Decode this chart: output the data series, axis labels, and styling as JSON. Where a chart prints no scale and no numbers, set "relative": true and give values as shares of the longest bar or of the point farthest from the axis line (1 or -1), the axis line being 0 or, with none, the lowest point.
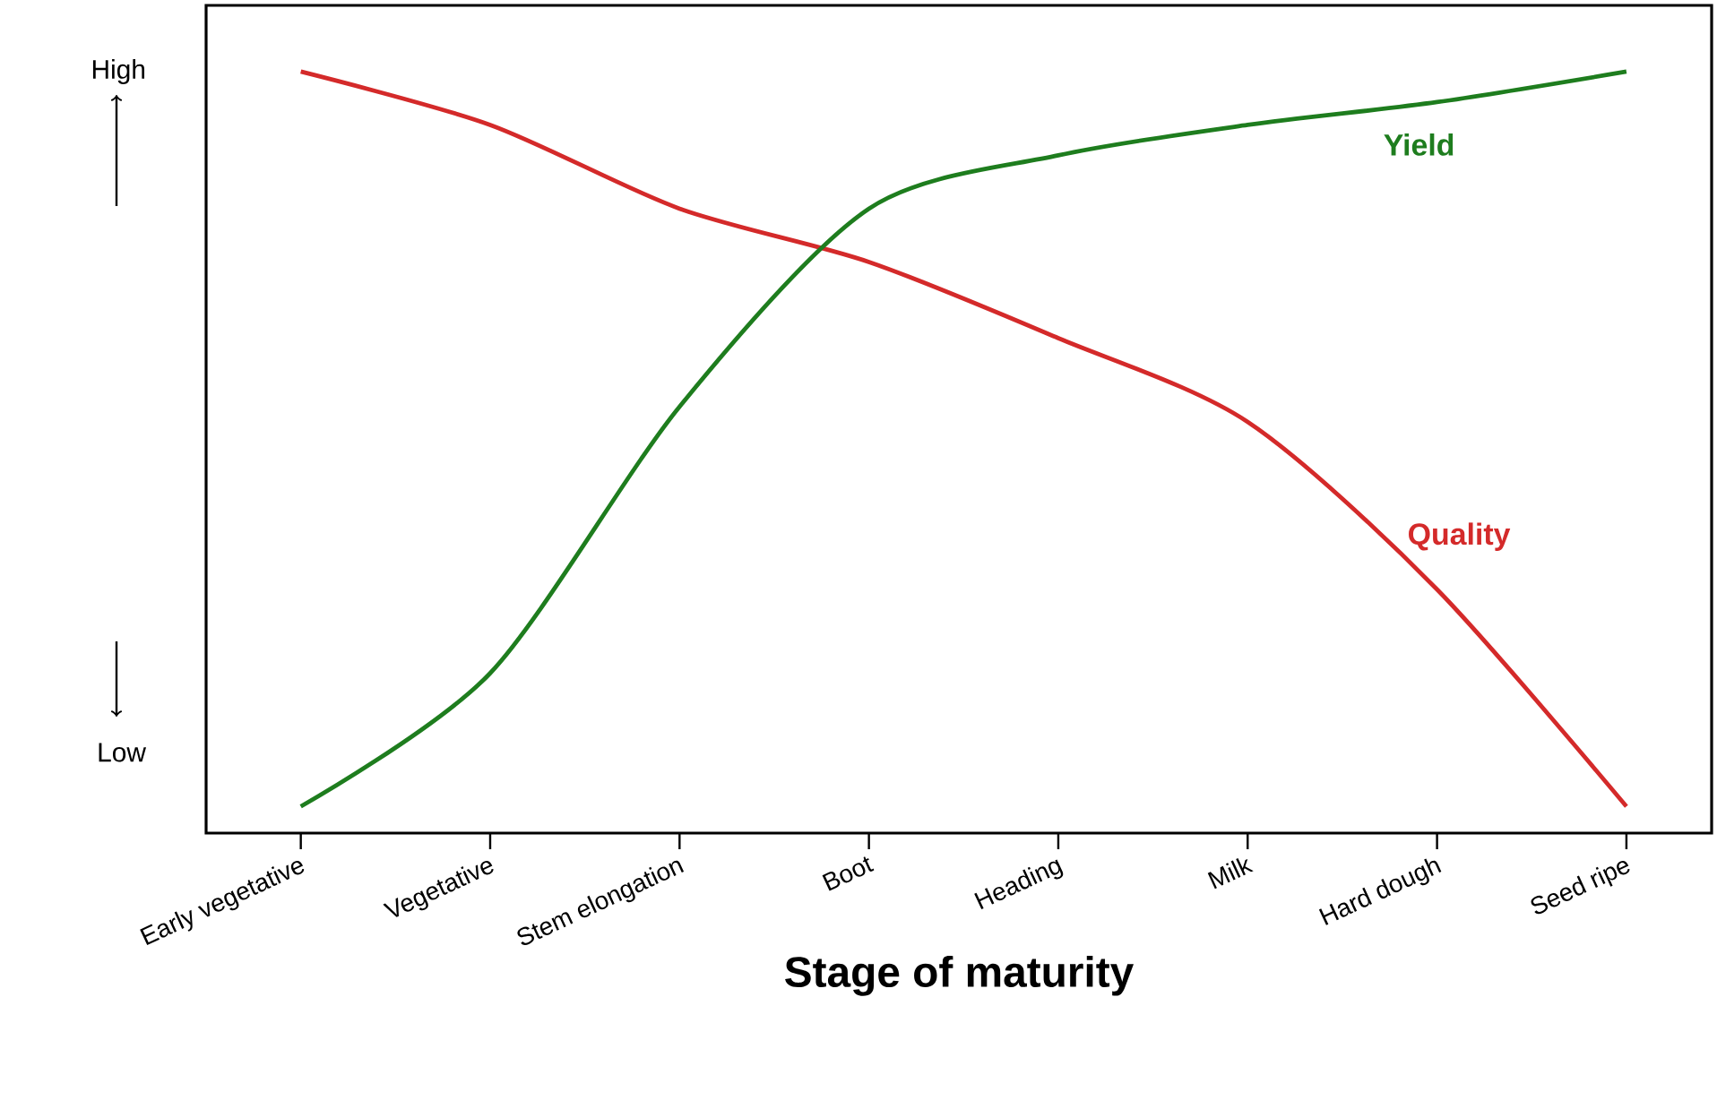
{
  "chart_data": {
    "type": "line",
    "xlabel": "Stage of maturity",
    "relative": true,
    "annotations": [
      "High",
      "Low"
    ],
    "categories": [
      "Early vegetative",
      "Vegetative",
      "Stem elongation",
      "Boot",
      "Heading",
      "Milk",
      "Hard dough",
      "Seed ripe"
    ],
    "series": [
      {
        "name": "Quality",
        "color": "#d42a2a",
        "values": [
          1.0,
          0.93,
          0.82,
          0.75,
          0.65,
          0.54,
          0.32,
          0.035
        ]
      },
      {
        "name": "Yield",
        "color": "#1e7d1e",
        "values": [
          0.035,
          0.21,
          0.56,
          0.82,
          0.89,
          0.93,
          0.96,
          1.0
        ]
      }
    ],
    "marker": "none",
    "line_style": "solid"
  }
}
